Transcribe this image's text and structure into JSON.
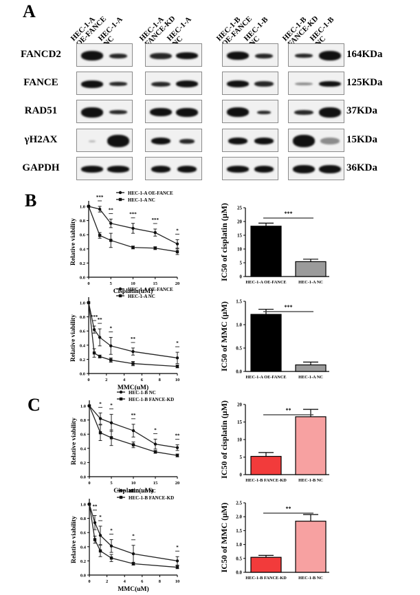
{
  "panels": {
    "a": "A",
    "b": "B",
    "c": "C"
  },
  "western_blot": {
    "groups": [
      {
        "lanes": [
          {
            "line1": "HEC-1-A",
            "line2": "OE-FANCE"
          },
          {
            "line1": "HEC-1-A",
            "line2": "NC"
          }
        ]
      },
      {
        "lanes": [
          {
            "line1": "HEC-1-A",
            "line2": "FANCE-KD"
          },
          {
            "line1": "HEC-1-A",
            "line2": "NC"
          }
        ]
      },
      {
        "lanes": [
          {
            "line1": "HEC-1-B",
            "line2": "OE-FANCE"
          },
          {
            "line1": "HEC-1-B",
            "line2": "NC"
          }
        ]
      },
      {
        "lanes": [
          {
            "line1": "HEC-1-B",
            "line2": "FANCE-KD"
          },
          {
            "line1": "HEC-1-B",
            "line2": "NC"
          }
        ]
      }
    ],
    "rows": [
      {
        "protein": "FANCD2",
        "kda": "164KDa"
      },
      {
        "protein": "FANCE",
        "kda": "125KDa"
      },
      {
        "protein": "RAD51",
        "kda": "37KDa"
      },
      {
        "protein": "γH2AX",
        "kda": "15KDa"
      },
      {
        "protein": "GAPDH",
        "kda": "36KDa"
      }
    ]
  },
  "chart_data": [
    {
      "type": "line",
      "panel": "B",
      "xlabel": "Cisplatin(uM)",
      "ylabel": "Relative viability",
      "xlim": [
        0,
        20
      ],
      "ylim": [
        0,
        1.0
      ],
      "xticks": [
        "0",
        "5",
        "10",
        "15",
        "20"
      ],
      "yticks": [
        "0.0",
        "0.2",
        "0.4",
        "0.6",
        "0.8",
        "1.0"
      ],
      "x": [
        0,
        2.5,
        5,
        10,
        15,
        20
      ],
      "series": [
        {
          "name": "HEC-1-A OE-FANCE",
          "marker": "circle",
          "values": [
            1.0,
            0.96,
            0.76,
            0.69,
            0.63,
            0.47
          ],
          "err": [
            0,
            0.04,
            0.06,
            0.07,
            0.05,
            0.06
          ]
        },
        {
          "name": "HEC-1-A NC",
          "marker": "square",
          "values": [
            1.0,
            0.59,
            0.52,
            0.42,
            0.41,
            0.36
          ],
          "err": [
            0,
            0.04,
            0.1,
            0.02,
            0.02,
            0.04
          ]
        }
      ],
      "significance": [
        "***",
        "**",
        "***",
        "***",
        "*"
      ]
    },
    {
      "type": "bar",
      "panel": "B",
      "ylabel": "IC50 of cisplatin (μM)",
      "ylim": [
        0,
        25
      ],
      "yticks": [
        "0",
        "5",
        "10",
        "15",
        "20",
        "25"
      ],
      "categories": [
        "HEC-1-A OE-FANCE",
        "HEC-1-A NC"
      ],
      "values": [
        18.3,
        5.4
      ],
      "err": [
        1.1,
        0.9
      ],
      "colors": [
        "#000000",
        "#9b9b9b"
      ],
      "significance": "***"
    },
    {
      "type": "line",
      "panel": "B",
      "xlabel": "MMC(uM)",
      "ylabel": "Relative viability",
      "xlim": [
        0,
        10
      ],
      "ylim": [
        0,
        1.0
      ],
      "xticks": [
        "0",
        "2",
        "4",
        "6",
        "8",
        "10"
      ],
      "yticks": [
        "0.0",
        "0.2",
        "0.4",
        "0.6",
        "0.8",
        "1.0"
      ],
      "x": [
        0,
        0.625,
        1.25,
        2.5,
        5,
        10
      ],
      "series": [
        {
          "name": "HEC-1-A OE-FANCE",
          "marker": "circle",
          "values": [
            1.0,
            0.62,
            0.51,
            0.39,
            0.31,
            0.22
          ],
          "err": [
            0,
            0.05,
            0.12,
            0.12,
            0.05,
            0.08
          ]
        },
        {
          "name": "HEC-1-A NC",
          "marker": "square",
          "values": [
            1.0,
            0.29,
            0.24,
            0.19,
            0.14,
            0.1
          ],
          "err": [
            0,
            0.06,
            0.02,
            0.03,
            0.03,
            0.02
          ]
        }
      ],
      "significance": [
        "***",
        "**",
        "*",
        "**",
        "*"
      ]
    },
    {
      "type": "bar",
      "panel": "B",
      "ylabel": "IC50 of MMC (μM)",
      "ylim": [
        0,
        1.5
      ],
      "yticks": [
        "0.0",
        "0.5",
        "1.0",
        "1.5"
      ],
      "categories": [
        "HEC-1-A OE-FANCE",
        "HEC-1-A NC"
      ],
      "values": [
        1.22,
        0.14
      ],
      "err": [
        0.11,
        0.06
      ],
      "colors": [
        "#000000",
        "#9b9b9b"
      ],
      "significance": "***"
    },
    {
      "type": "line",
      "panel": "C",
      "xlabel": "Cisplatin(uM)",
      "ylabel": "Relative viability",
      "xlim": [
        0,
        20
      ],
      "ylim": [
        0,
        1.0
      ],
      "xticks": [
        "0",
        "5",
        "10",
        "15",
        "20"
      ],
      "yticks": [
        "0.0",
        "0.2",
        "0.4",
        "0.6",
        "0.8",
        "1.0"
      ],
      "x": [
        0,
        2.5,
        5,
        10,
        15,
        20
      ],
      "series": [
        {
          "name": "HEC-1-B NC",
          "marker": "circle",
          "values": [
            1.0,
            0.82,
            0.76,
            0.65,
            0.46,
            0.41
          ],
          "err": [
            0,
            0.08,
            0.12,
            0.09,
            0.07,
            0.04
          ]
        },
        {
          "name": "HEC-1-B FANCE-KD",
          "marker": "square",
          "values": [
            1.0,
            0.62,
            0.55,
            0.45,
            0.35,
            0.3
          ],
          "err": [
            0,
            0.11,
            0.11,
            0.04,
            0.02,
            0.02
          ]
        }
      ],
      "significance": [
        "*",
        "*",
        "**",
        "*",
        "**"
      ]
    },
    {
      "type": "bar",
      "panel": "C",
      "ylabel": "IC50 of cisplatin (μM)",
      "ylim": [
        0,
        20
      ],
      "yticks": [
        "0",
        "5",
        "10",
        "15",
        "20"
      ],
      "categories": [
        "HEC-1-B FANCE-KD",
        "HEC-1-B NC"
      ],
      "values": [
        5.2,
        16.5
      ],
      "err": [
        1.1,
        2.1
      ],
      "colors": [
        "#f23b3b",
        "#f7a1a1"
      ],
      "significance": "**"
    },
    {
      "type": "line",
      "panel": "C",
      "xlabel": "MMC(uM)",
      "ylabel": "Relative viability",
      "xlim": [
        0,
        10
      ],
      "ylim": [
        0,
        1.0
      ],
      "xticks": [
        "0",
        "2",
        "4",
        "6",
        "8",
        "10"
      ],
      "yticks": [
        "0.0",
        "0.2",
        "0.4",
        "0.6",
        "0.8",
        "1.0"
      ],
      "x": [
        0,
        0.625,
        1.25,
        2.5,
        5,
        10
      ],
      "series": [
        {
          "name": "HEC-1-B NC",
          "marker": "circle",
          "values": [
            1.0,
            0.74,
            0.56,
            0.41,
            0.3,
            0.2
          ],
          "err": [
            0,
            0.1,
            0.13,
            0.09,
            0.12,
            0.06
          ]
        },
        {
          "name": "HEC-1-B FANCE-KD",
          "marker": "square",
          "values": [
            1.0,
            0.5,
            0.34,
            0.24,
            0.16,
            0.11
          ],
          "err": [
            0,
            0.05,
            0.08,
            0.05,
            0.02,
            0.02
          ]
        }
      ],
      "significance": [
        "**",
        "*",
        "*",
        "*",
        "*"
      ]
    },
    {
      "type": "bar",
      "panel": "C",
      "ylabel": "IC50 of MMC (μM)",
      "ylim": [
        0,
        2.5
      ],
      "yticks": [
        "0.0",
        "0.5",
        "1.0",
        "1.5",
        "2.0",
        "2.5"
      ],
      "categories": [
        "HEC-1-B FANCE-KD",
        "HEC-1-B NC"
      ],
      "values": [
        0.54,
        1.84
      ],
      "err": [
        0.07,
        0.24
      ],
      "colors": [
        "#f23b3b",
        "#f7a1a1"
      ],
      "significance": "**"
    }
  ]
}
